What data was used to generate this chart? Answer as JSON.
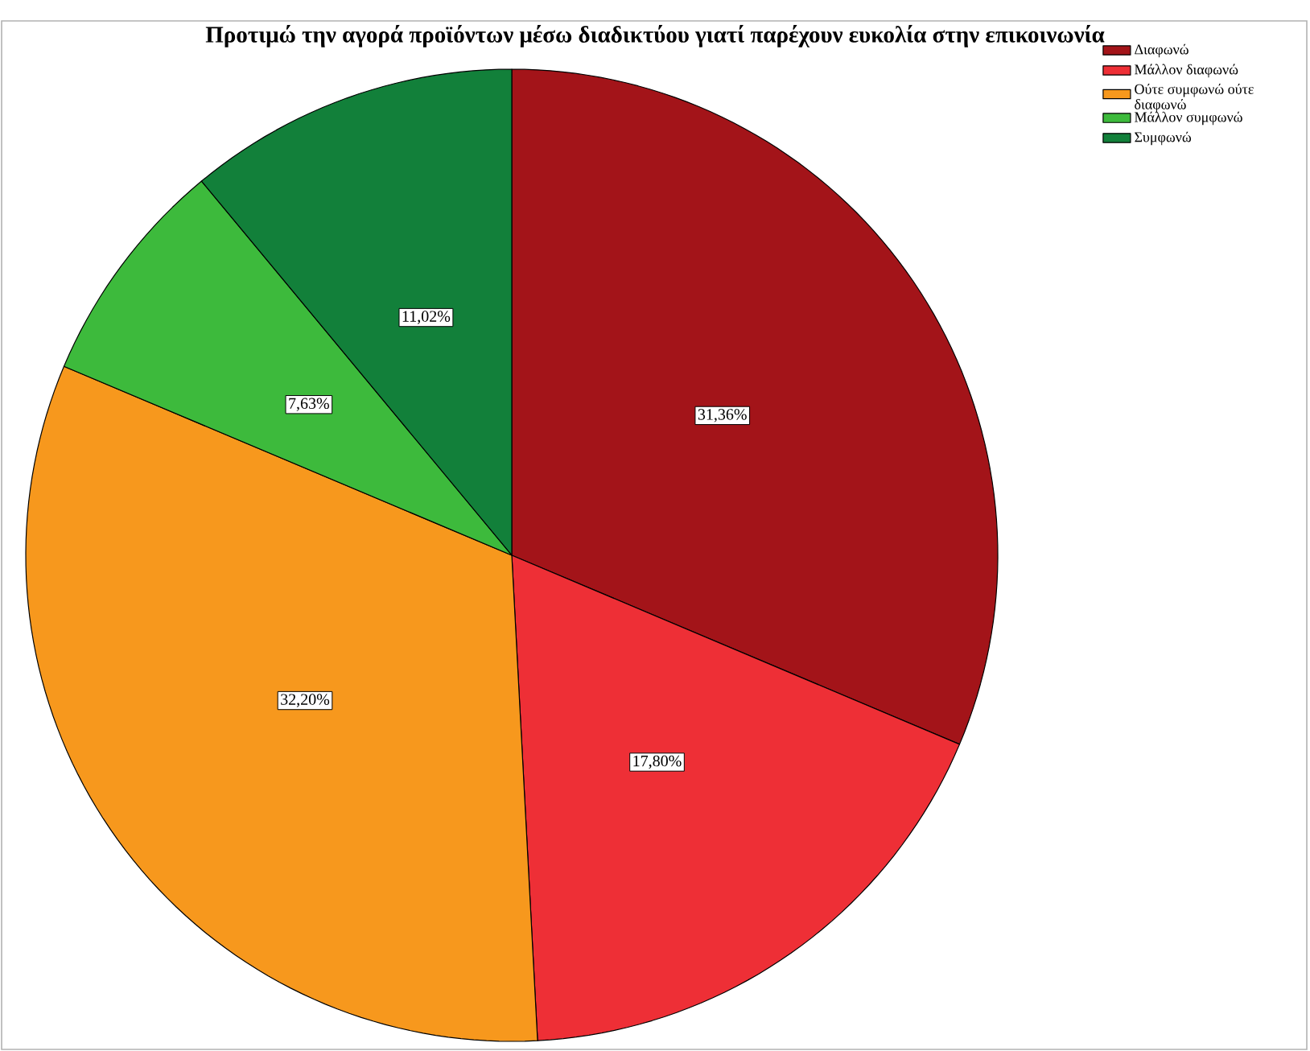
{
  "chart_data": {
    "type": "pie",
    "title": "Προτιμώ την αγορά προϊόντων μέσω διαδικτύου γιατί παρέχουν ευκολία στην επικοινωνία",
    "categories": [
      "Διαφωνώ",
      "Μάλλον διαφωνώ",
      "Ούτε συμφωνώ ούτε διαφωνώ",
      "Μάλλον συμφωνώ",
      "Συμφωνώ"
    ],
    "values": [
      31.36,
      17.8,
      32.2,
      7.63,
      11.02
    ],
    "value_labels": [
      "31,36%",
      "17,80%",
      "32,20%",
      "7,63%",
      "11,02%"
    ],
    "colors": [
      "#a31419",
      "#ee2f36",
      "#f7981d",
      "#3dba3c",
      "#12803a"
    ],
    "legend": "top right"
  }
}
